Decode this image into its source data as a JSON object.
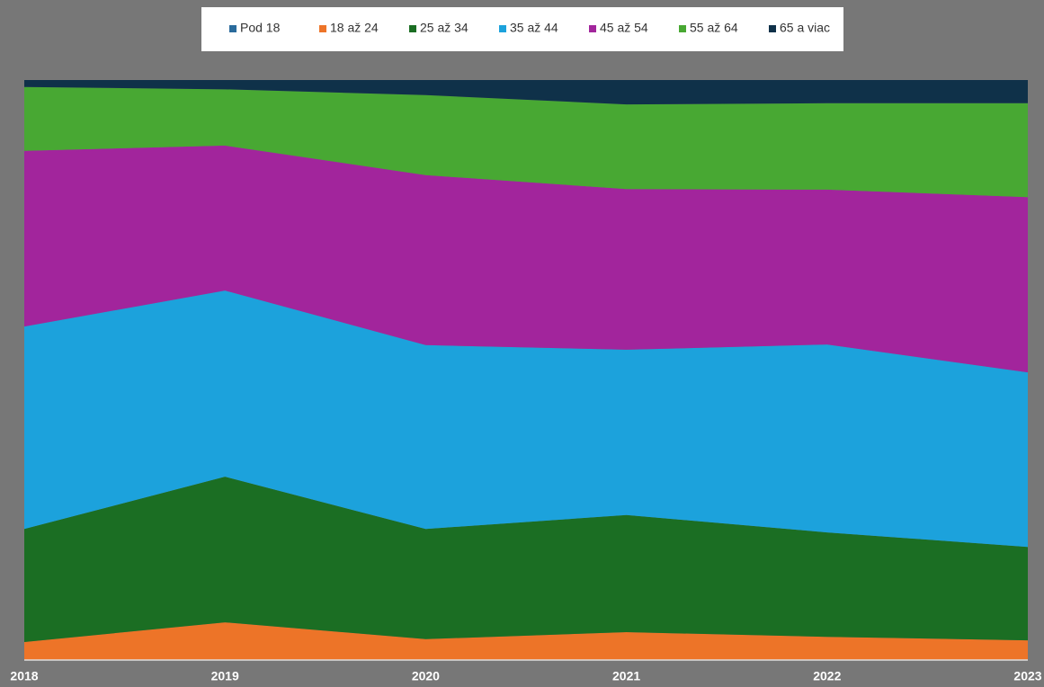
{
  "chart_data": {
    "type": "area_stacked",
    "categories": [
      "2018",
      "2019",
      "2020",
      "2021",
      "2022",
      "2023"
    ],
    "series": [
      {
        "name": "Pod 18",
        "color": "#2a6b9c",
        "values": [
          0,
          0,
          0,
          0,
          0,
          0
        ]
      },
      {
        "name": "18 až 24",
        "color": "#ed7428",
        "values": [
          3.1,
          6.5,
          3.6,
          4.8,
          4.0,
          3.4
        ]
      },
      {
        "name": "25 až 34",
        "color": "#1b6e23",
        "values": [
          19.5,
          25.1,
          19.0,
          20.2,
          18.0,
          16.1
        ]
      },
      {
        "name": "35 až 44",
        "color": "#1ca2dc",
        "values": [
          34.9,
          32.1,
          31.7,
          28.5,
          32.4,
          30.1
        ]
      },
      {
        "name": "45 až 54",
        "color": "#a2259c",
        "values": [
          30.3,
          25.0,
          29.3,
          27.7,
          26.7,
          30.2
        ]
      },
      {
        "name": "55 až 64",
        "color": "#48a833",
        "values": [
          11.0,
          9.7,
          13.8,
          14.6,
          14.9,
          16.2
        ]
      },
      {
        "name": "65 a viac",
        "color": "#0f3149",
        "values": [
          1.2,
          1.6,
          2.6,
          4.2,
          4.0,
          4.0
        ]
      }
    ],
    "ylim": [
      0,
      100
    ]
  }
}
